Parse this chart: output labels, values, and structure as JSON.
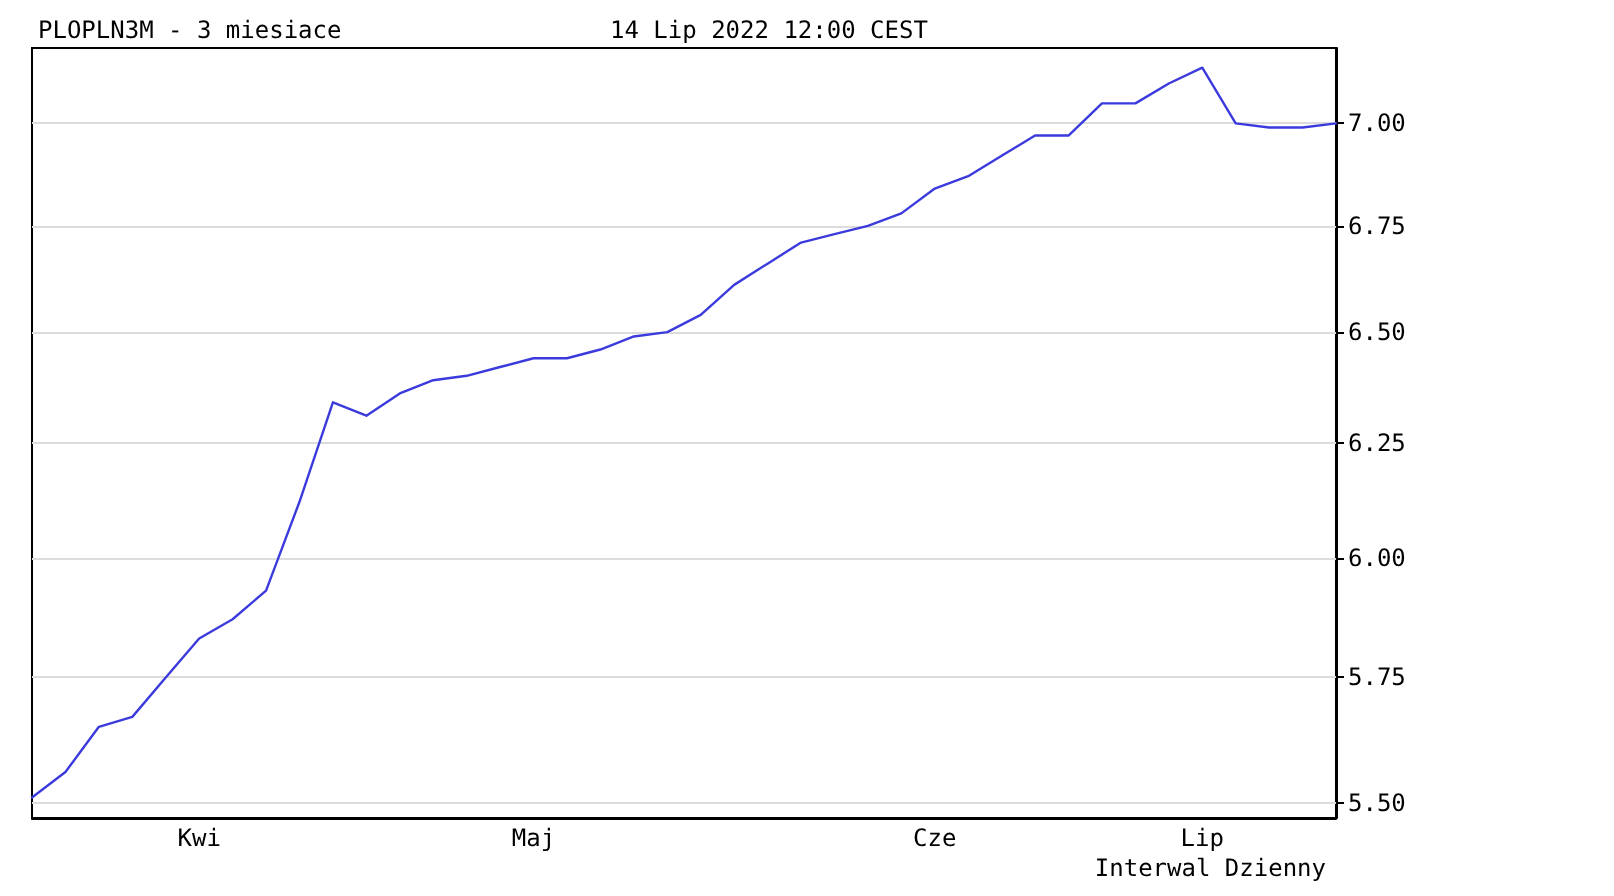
{
  "chart_data": {
    "type": "line",
    "title": "PLOPLN3M - 3 miesiace",
    "subtitle": "14 Lip 2022 12:00 CEST",
    "annotations": [
      "Interwal Dzienny"
    ],
    "categories": [
      null,
      null,
      null,
      null,
      null,
      "Kwi",
      null,
      null,
      null,
      null,
      null,
      null,
      null,
      null,
      null,
      "Maj",
      null,
      null,
      null,
      null,
      null,
      null,
      null,
      null,
      null,
      null,
      null,
      "Cze",
      null,
      null,
      null,
      null,
      null,
      null,
      null,
      "Lip",
      null,
      null,
      null,
      null
    ],
    "series": [
      {
        "color": "#3b3bdd",
        "values": [
          5.51,
          5.56,
          5.65,
          5.67,
          5.75,
          5.83,
          5.87,
          5.93,
          6.12,
          6.34,
          6.31,
          6.36,
          6.39,
          6.4,
          6.42,
          6.44,
          6.44,
          6.46,
          6.49,
          6.5,
          6.54,
          6.61,
          6.66,
          6.71,
          6.73,
          6.75,
          6.78,
          6.84,
          6.87,
          6.92,
          6.97,
          6.97,
          7.05,
          7.05,
          7.1,
          7.14,
          7.0,
          6.99,
          6.99,
          7.0
        ]
      }
    ],
    "ylim": [
      5.47,
      7.19
    ],
    "yticks": [
      {
        "value": 5.5,
        "label": "5.50"
      },
      {
        "value": 5.75,
        "label": "5.75"
      },
      {
        "value": 6.0,
        "label": "6.00"
      },
      {
        "value": 6.25,
        "label": "6.25"
      },
      {
        "value": 6.5,
        "label": "6.50"
      },
      {
        "value": 6.75,
        "label": "6.75"
      },
      {
        "value": 7.0,
        "label": "7.00"
      }
    ],
    "log": "y",
    "grid": "y",
    "marker": "none",
    "line_style": "solid"
  }
}
